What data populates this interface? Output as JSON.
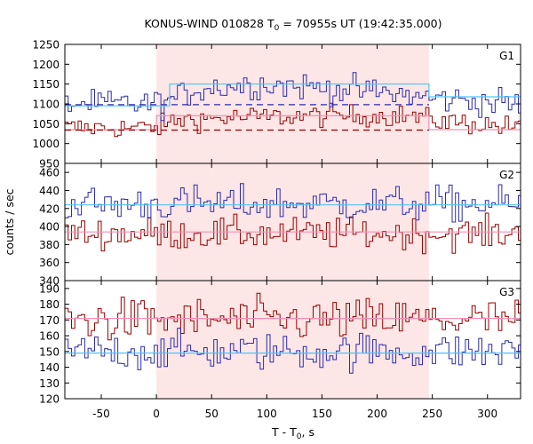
{
  "chart_data": {
    "type": "line",
    "title": "KONUS-WIND 010828 T",
    "title_sub": "0",
    "title_rest": " = 70955s UT (19:42:35.000)",
    "xlabel": "T - T",
    "xlabel_sub": "0",
    "xlabel_rest": ", s",
    "ylabel": "counts / sec",
    "xlim": [
      -83,
      330
    ],
    "x_ticks": [
      -50,
      0,
      50,
      100,
      150,
      200,
      250,
      300
    ],
    "shaded_interval": [
      0,
      247
    ],
    "bin_width": 3,
    "colors": {
      "blue": "#2b2bb0",
      "red": "#990000",
      "fit_blue": "#4fc3f7",
      "fit_red": "#f48fb1",
      "shade": "#fde6e6"
    },
    "panels": [
      {
        "name": "G1",
        "ylim": [
          950,
          1250
        ],
        "y_ticks": [
          950,
          1000,
          1050,
          1100,
          1150,
          1200,
          1250
        ],
        "blue_base": [
          [
            -83,
            1100
          ],
          [
            0,
            1100
          ],
          [
            10,
            1105
          ],
          [
            40,
            1140
          ],
          [
            100,
            1150
          ],
          [
            180,
            1135
          ],
          [
            220,
            1125
          ],
          [
            247,
            1115
          ],
          [
            330,
            1100
          ]
        ],
        "blue_noise": 18,
        "red_base": [
          [
            -83,
            1040
          ],
          [
            0,
            1040
          ],
          [
            20,
            1060
          ],
          [
            70,
            1065
          ],
          [
            150,
            1070
          ],
          [
            230,
            1070
          ],
          [
            247,
            1060
          ],
          [
            330,
            1040
          ]
        ],
        "red_noise": 14,
        "blue_fit": [
          [
            -83,
            1095
          ],
          [
            0,
            1095
          ],
          [
            12,
            1095
          ],
          [
            12,
            1150
          ],
          [
            247,
            1150
          ],
          [
            247,
            1118
          ],
          [
            330,
            1118
          ]
        ],
        "red_fit": [
          [
            -83,
            1035
          ],
          [
            0,
            1035
          ],
          [
            0,
            1070
          ],
          [
            247,
            1070
          ],
          [
            247,
            1035
          ],
          [
            330,
            1035
          ]
        ],
        "blue_bg_dash": [
          [
            -83,
            1098
          ],
          [
            247,
            1098
          ]
        ],
        "red_bg_dash": [
          [
            -83,
            1034
          ],
          [
            247,
            1034
          ]
        ]
      },
      {
        "name": "G2",
        "ylim": [
          340,
          470
        ],
        "y_ticks": [
          340,
          360,
          380,
          400,
          420,
          440,
          460
        ],
        "blue_base": [
          [
            -83,
            425
          ],
          [
            330,
            425
          ]
        ],
        "blue_noise": 10,
        "red_base": [
          [
            -83,
            392
          ],
          [
            330,
            392
          ]
        ],
        "red_noise": 9,
        "blue_fit": [
          [
            -83,
            424
          ],
          [
            330,
            424
          ]
        ],
        "red_fit": [
          [
            -83,
            394
          ],
          [
            330,
            394
          ]
        ]
      },
      {
        "name": "G3",
        "ylim": [
          120,
          195
        ],
        "y_ticks": [
          120,
          130,
          140,
          150,
          160,
          170,
          180,
          190
        ],
        "blue_base": [
          [
            -83,
            150
          ],
          [
            330,
            150
          ]
        ],
        "blue_noise": 6,
        "red_base": [
          [
            -83,
            170
          ],
          [
            330,
            170
          ]
        ],
        "red_noise": 7,
        "blue_fit": [
          [
            -83,
            149
          ],
          [
            330,
            149
          ]
        ],
        "red_fit": [
          [
            -83,
            171
          ],
          [
            330,
            171
          ]
        ]
      }
    ]
  }
}
